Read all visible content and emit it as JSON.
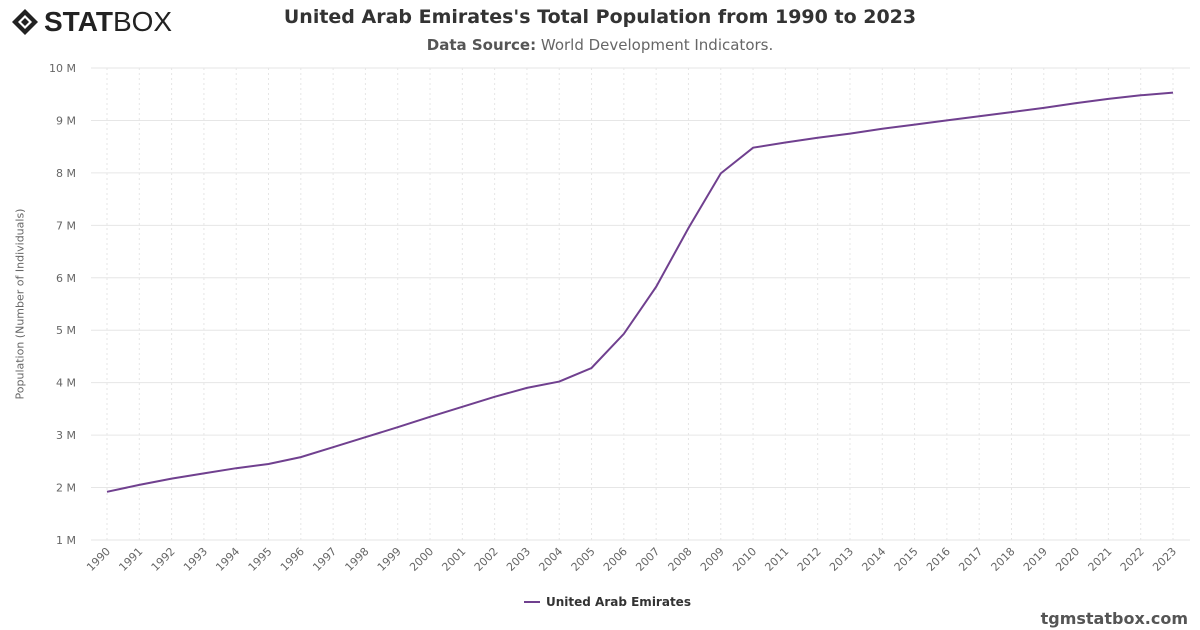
{
  "logo": {
    "bold": "STAT",
    "light": "BOX"
  },
  "header": {
    "title": "United Arab Emirates's Total Population from 1990 to 2023",
    "source_label": "Data Source:",
    "source_value": "World Development Indicators."
  },
  "footer": {
    "site": "tgmstatbox.com"
  },
  "colors": {
    "series": "#70408f"
  },
  "chart_data": {
    "type": "line",
    "title": "United Arab Emirates's Total Population from 1990 to 2023",
    "ylabel": "Population (Number of Individuals)",
    "xlabel": "",
    "ylim": [
      1000000,
      10000000
    ],
    "yticks": [
      "1 M",
      "2 M",
      "3 M",
      "4 M",
      "5 M",
      "6 M",
      "7 M",
      "8 M",
      "9 M",
      "10 M"
    ],
    "grid": true,
    "legend": "bottom-center",
    "x": [
      "1990",
      "1991",
      "1992",
      "1993",
      "1994",
      "1995",
      "1996",
      "1997",
      "1998",
      "1999",
      "2000",
      "2001",
      "2002",
      "2003",
      "2004",
      "2005",
      "2006",
      "2007",
      "2008",
      "2009",
      "2010",
      "2011",
      "2012",
      "2013",
      "2014",
      "2015",
      "2016",
      "2017",
      "2018",
      "2019",
      "2020",
      "2021",
      "2022",
      "2023"
    ],
    "series": [
      {
        "name": "United Arab Emirates",
        "values": [
          1920000,
          2050000,
          2170000,
          2270000,
          2370000,
          2450000,
          2580000,
          2770000,
          2960000,
          3150000,
          3350000,
          3540000,
          3730000,
          3900000,
          4020000,
          4280000,
          4930000,
          5830000,
          6950000,
          7990000,
          8480000,
          8580000,
          8670000,
          8750000,
          8840000,
          8920000,
          9000000,
          9080000,
          9160000,
          9240000,
          9330000,
          9410000,
          9480000,
          9530000
        ]
      }
    ]
  }
}
